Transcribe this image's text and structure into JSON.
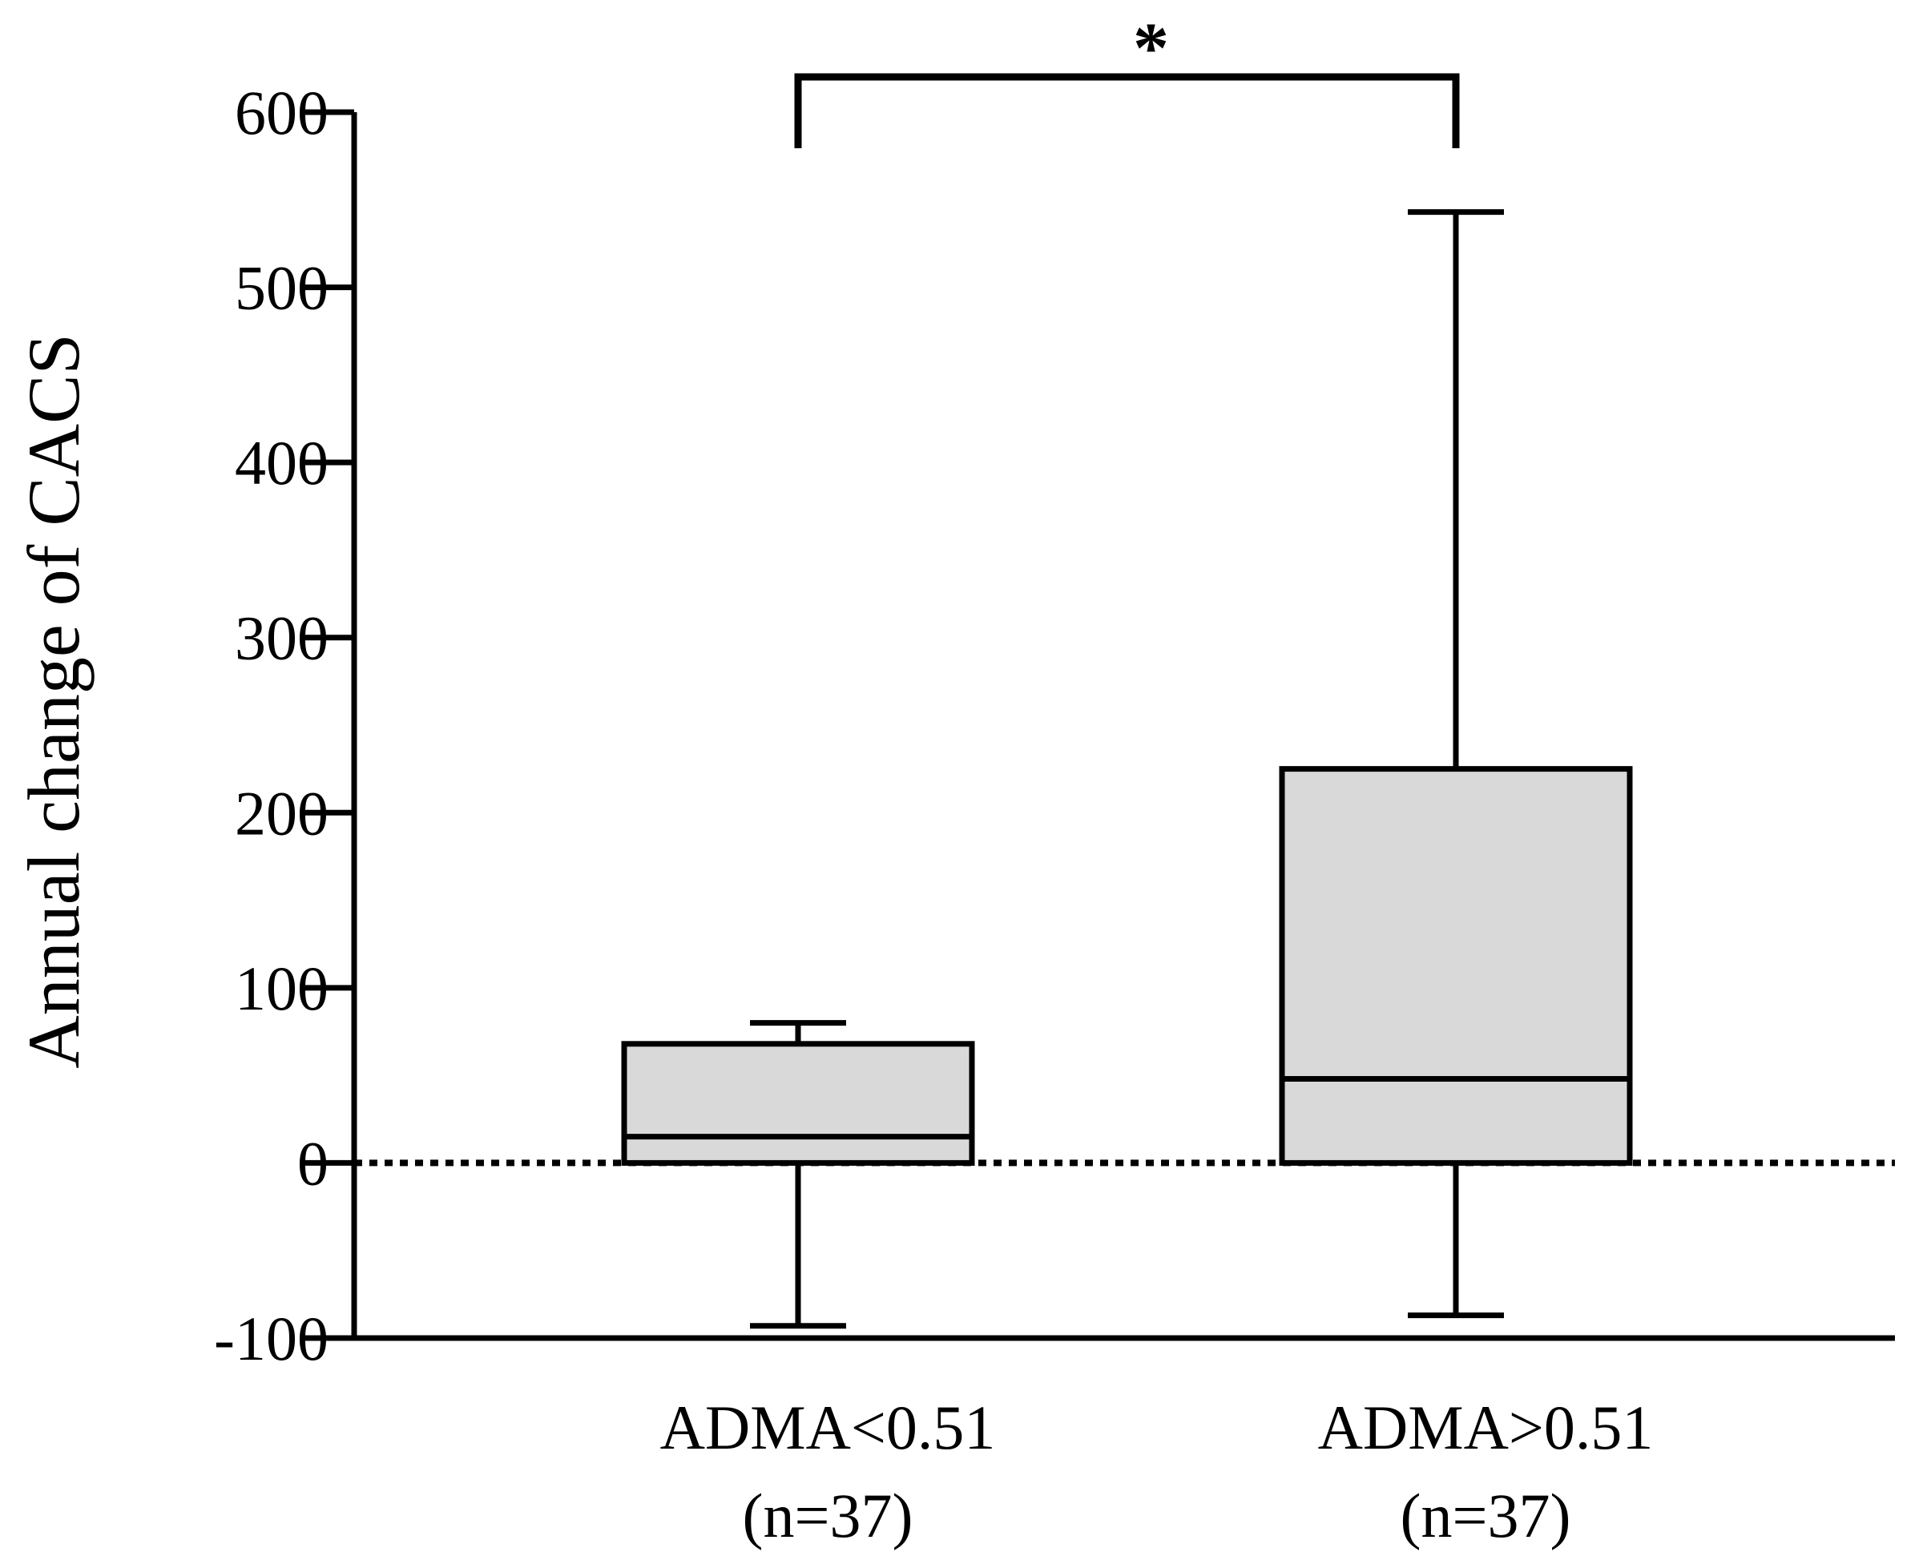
{
  "chart_data": {
    "type": "box",
    "title": "",
    "xlabel": "",
    "ylabel": "Annual change of CACS",
    "ylim": [
      -100,
      600
    ],
    "yticks": [
      -100,
      0,
      100,
      200,
      300,
      400,
      500,
      600
    ],
    "ytick_labels": [
      "-100",
      "0",
      "100",
      "200",
      "300",
      "400",
      "500",
      "600"
    ],
    "reference_line": {
      "value": 0,
      "style": "dotted"
    },
    "categories": [
      {
        "line1": "ADMA<0.51",
        "line2": "(n=37)"
      },
      {
        "line1": "ADMA>0.51",
        "line2": "(n=37)"
      }
    ],
    "boxes": [
      {
        "name": "ADMA<0.51",
        "whisker_low": -93,
        "q1": 0,
        "median": 15,
        "q3": 68,
        "whisker_high": 80
      },
      {
        "name": "ADMA>0.51",
        "whisker_low": -87,
        "q1": 0,
        "median": 48,
        "q3": 225,
        "whisker_high": 543
      }
    ],
    "significance": {
      "label": "*",
      "between": [
        0,
        1
      ]
    },
    "colors": {
      "box_fill": "#d9d9d9",
      "stroke": "#000000"
    }
  }
}
